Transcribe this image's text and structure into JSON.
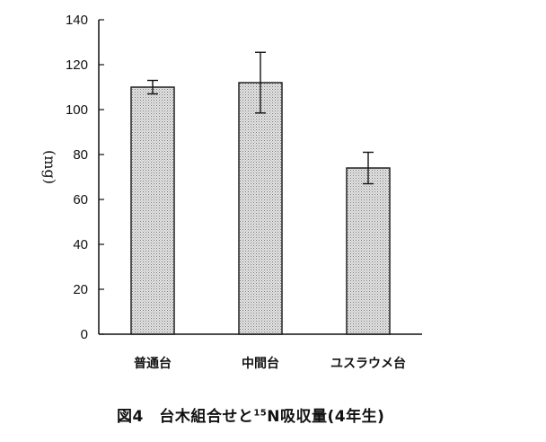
{
  "chart_data": {
    "type": "bar",
    "categories": [
      "普通台",
      "中間台",
      "ユスラウメ台"
    ],
    "values": [
      110,
      112,
      74
    ],
    "error": [
      3,
      13.5,
      7
    ],
    "ylabel": "(mg)",
    "yticks": [
      0,
      20,
      40,
      60,
      80,
      100,
      120,
      140
    ],
    "ylim": [
      0,
      140
    ],
    "bar_fill": "#d9d9d9",
    "bar_pattern": "dotted",
    "grid": false,
    "legend": "none"
  },
  "caption": {
    "prefix": "図4　台木組合せと",
    "isotope_mass": "15",
    "suffix": "N吸収量(4年生)"
  }
}
